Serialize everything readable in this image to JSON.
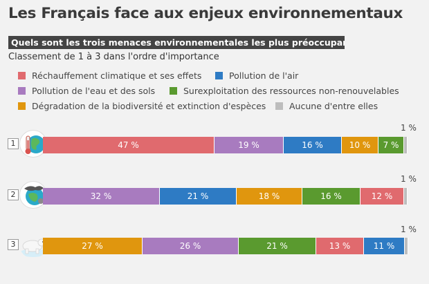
{
  "header": {
    "title": "Les Français face aux enjeux environnementaux",
    "question": "Quels sont les trois menaces environnementales les plus préoccupantes ?",
    "subtitle": "Classement de 1 à 3 dans l'ordre d'importance"
  },
  "legend": [
    {
      "label": "Réchauffement climatique et ses effets",
      "color": "#e06a6e"
    },
    {
      "label": "Pollution de l'air",
      "color": "#2e7bc4"
    },
    {
      "label": "Pollution de l'eau et des sols",
      "color": "#a87bbf"
    },
    {
      "label": "Surexploitation des ressources non-renouvelables",
      "color": "#5a9a2f"
    },
    {
      "label": "Dégradation de la biodiversité et extinction d'espèces",
      "color": "#e0960e"
    },
    {
      "label": "Aucune d'entre elles",
      "color": "#bdbdbd"
    }
  ],
  "chart_data": {
    "type": "bar",
    "stacked": true,
    "orientation": "horizontal",
    "categories": [
      "1",
      "2",
      "3"
    ],
    "rows": [
      {
        "rank": "1",
        "icon": "thermometer-earth-icon",
        "segments": [
          {
            "series": "Réchauffement climatique et ses effets",
            "value": 47,
            "label": "47 %"
          },
          {
            "series": "Pollution de l'eau et des sols",
            "value": 19,
            "label": "19 %"
          },
          {
            "series": "Pollution de l'air",
            "value": 16,
            "label": "16 %"
          },
          {
            "series": "Dégradation de la biodiversité et extinction d'espèces",
            "value": 10,
            "label": "10 %"
          },
          {
            "series": "Surexploitation des ressources non-renouvelables",
            "value": 7,
            "label": "7 %"
          },
          {
            "series": "Aucune d'entre elles",
            "value": 1,
            "label": "1 %"
          }
        ]
      },
      {
        "rank": "2",
        "icon": "polluted-earth-icon",
        "segments": [
          {
            "series": "Pollution de l'eau et des sols",
            "value": 32,
            "label": "32 %"
          },
          {
            "series": "Pollution de l'air",
            "value": 21,
            "label": "21 %"
          },
          {
            "series": "Dégradation de la biodiversité et extinction d'espèces",
            "value": 18,
            "label": "18 %"
          },
          {
            "series": "Surexploitation des ressources non-renouvelables",
            "value": 16,
            "label": "16 %"
          },
          {
            "series": "Réchauffement climatique et ses effets",
            "value": 12,
            "label": "12 %"
          },
          {
            "series": "Aucune d'entre elles",
            "value": 1,
            "label": "1 %"
          }
        ]
      },
      {
        "rank": "3",
        "icon": "polar-bear-icon",
        "segments": [
          {
            "series": "Dégradation de la biodiversité et extinction d'espèces",
            "value": 27,
            "label": "27 %"
          },
          {
            "series": "Pollution de l'eau et des sols",
            "value": 26,
            "label": "26 %"
          },
          {
            "series": "Surexploitation des ressources non-renouvelables",
            "value": 21,
            "label": "21 %"
          },
          {
            "series": "Réchauffement climatique et ses effets",
            "value": 13,
            "label": "13 %"
          },
          {
            "series": "Pollution de l'air",
            "value": 11,
            "label": "11 %"
          },
          {
            "series": "Aucune d'entre elles",
            "value": 1,
            "label": "1 %"
          }
        ]
      }
    ]
  }
}
